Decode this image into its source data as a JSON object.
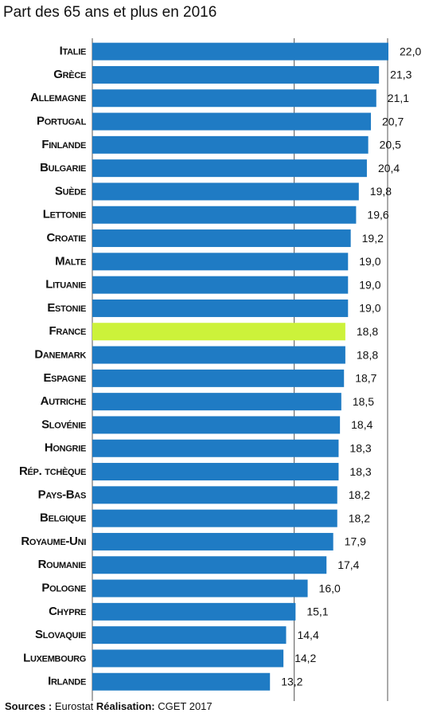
{
  "chart_data": {
    "type": "barh",
    "title": "Part des 65 ans et plus en 2016",
    "categories": [
      "Italie",
      "Grèce",
      "Allemagne",
      "Portugal",
      "Finlande",
      "Bulgarie",
      "Suède",
      "Lettonie",
      "Croatie",
      "Malte",
      "Lituanie",
      "Estonie",
      "France",
      "Danemark",
      "Espagne",
      "Autriche",
      "Slovénie",
      "Hongrie",
      "Rép. tchèque",
      "Pays-Bas",
      "Belgique",
      "Royaume-Uni",
      "Roumanie",
      "Pologne",
      "Chypre",
      "Slovaquie",
      "Luxembourg",
      "Irlande"
    ],
    "values": [
      22.0,
      21.3,
      21.1,
      20.7,
      20.5,
      20.4,
      19.8,
      19.6,
      19.2,
      19.0,
      19.0,
      19.0,
      18.8,
      18.8,
      18.7,
      18.5,
      18.4,
      18.3,
      18.3,
      18.2,
      18.2,
      17.9,
      17.4,
      16.0,
      15.1,
      14.4,
      14.2,
      13.2
    ],
    "value_labels": [
      "22,0",
      "21,3",
      "21,1",
      "20,7",
      "20,5",
      "20,4",
      "19,8",
      "19,6",
      "19,2",
      "19,0",
      "19,0",
      "19,0",
      "18,8",
      "18,8",
      "18,7",
      "18,5",
      "18,4",
      "18,3",
      "18,3",
      "18,2",
      "18,2",
      "17,9",
      "17,4",
      "16,0",
      "15,1",
      "14,4",
      "14,2",
      "13,2"
    ],
    "color": "#1f7bc4",
    "highlight": {
      "category": "France",
      "color": "#ccf23a"
    },
    "xlim": [
      0,
      22
    ],
    "xticks": [
      0,
      15
    ],
    "grid": true,
    "source_label": "Sources :",
    "source": "Eurostat",
    "credit_label": "Réalisation:",
    "credit": "CGET 2017"
  }
}
